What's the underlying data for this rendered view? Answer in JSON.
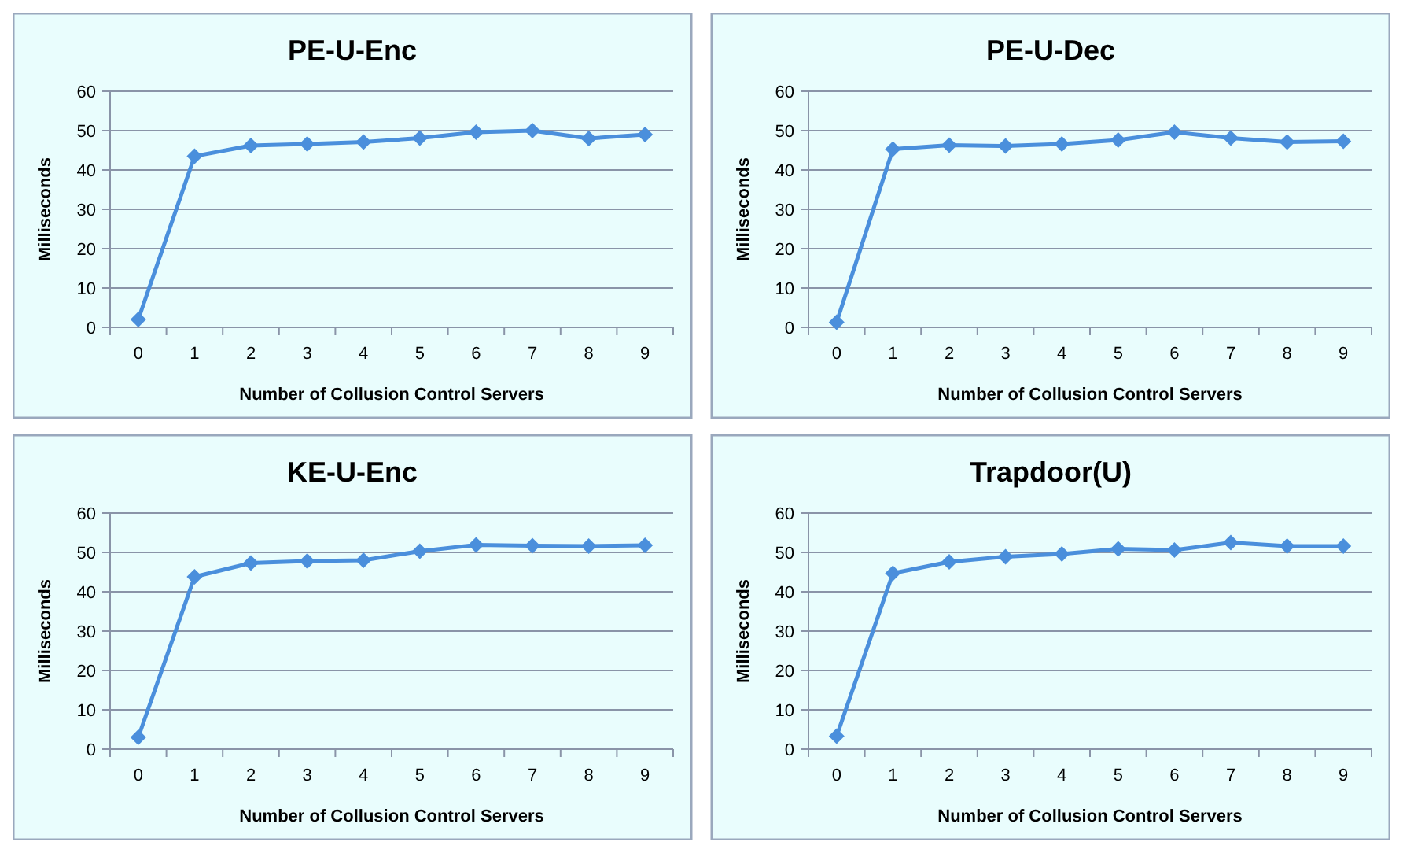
{
  "chart_data": [
    {
      "type": "line",
      "title": "PE-U-Enc",
      "xlabel": "Number of Collusion Control Servers",
      "ylabel": "Milliseconds",
      "categories": [
        "0",
        "1",
        "2",
        "3",
        "4",
        "5",
        "6",
        "7",
        "8",
        "9"
      ],
      "series": [
        {
          "color": "#4a8fdc",
          "values": [
            2,
            43.5,
            46.2,
            46.6,
            47.1,
            48.1,
            49.6,
            50,
            48,
            49
          ]
        }
      ],
      "ylim": [
        0,
        60
      ],
      "yticks": [
        0,
        10,
        20,
        30,
        40,
        50,
        60
      ],
      "grid": "y",
      "marker": "diamond",
      "line_style": "solid"
    },
    {
      "type": "line",
      "title": "PE-U-Dec",
      "xlabel": "Number of Collusion Control Servers",
      "ylabel": "Milliseconds",
      "categories": [
        "0",
        "1",
        "2",
        "3",
        "4",
        "5",
        "6",
        "7",
        "8",
        "9"
      ],
      "series": [
        {
          "color": "#4a8fdc",
          "values": [
            1.3,
            45.3,
            46.3,
            46.1,
            46.6,
            47.6,
            49.6,
            48.1,
            47.1,
            47.3
          ]
        }
      ],
      "ylim": [
        0,
        60
      ],
      "yticks": [
        0,
        10,
        20,
        30,
        40,
        50,
        60
      ],
      "grid": "y",
      "marker": "diamond",
      "line_style": "solid"
    },
    {
      "type": "line",
      "title": "KE-U-Enc",
      "xlabel": "Number of Collusion Control Servers",
      "ylabel": "Milliseconds",
      "categories": [
        "0",
        "1",
        "2",
        "3",
        "4",
        "5",
        "6",
        "7",
        "8",
        "9"
      ],
      "series": [
        {
          "color": "#4a8fdc",
          "values": [
            3,
            43.8,
            47.3,
            47.8,
            48,
            50.3,
            51.9,
            51.7,
            51.6,
            51.8
          ]
        }
      ],
      "ylim": [
        0,
        60
      ],
      "yticks": [
        0,
        10,
        20,
        30,
        40,
        50,
        60
      ],
      "grid": "y",
      "marker": "diamond",
      "line_style": "solid"
    },
    {
      "type": "line",
      "title": "Trapdoor(U)",
      "xlabel": "Number of Collusion Control Servers",
      "ylabel": "Milliseconds",
      "categories": [
        "0",
        "1",
        "2",
        "3",
        "4",
        "5",
        "6",
        "7",
        "8",
        "9"
      ],
      "series": [
        {
          "color": "#4a8fdc",
          "values": [
            3.3,
            44.7,
            47.6,
            48.9,
            49.6,
            50.9,
            50.6,
            52.5,
            51.6,
            51.6
          ]
        }
      ],
      "ylim": [
        0,
        60
      ],
      "yticks": [
        0,
        10,
        20,
        30,
        40,
        50,
        60
      ],
      "grid": "y",
      "marker": "diamond",
      "line_style": "solid"
    }
  ]
}
